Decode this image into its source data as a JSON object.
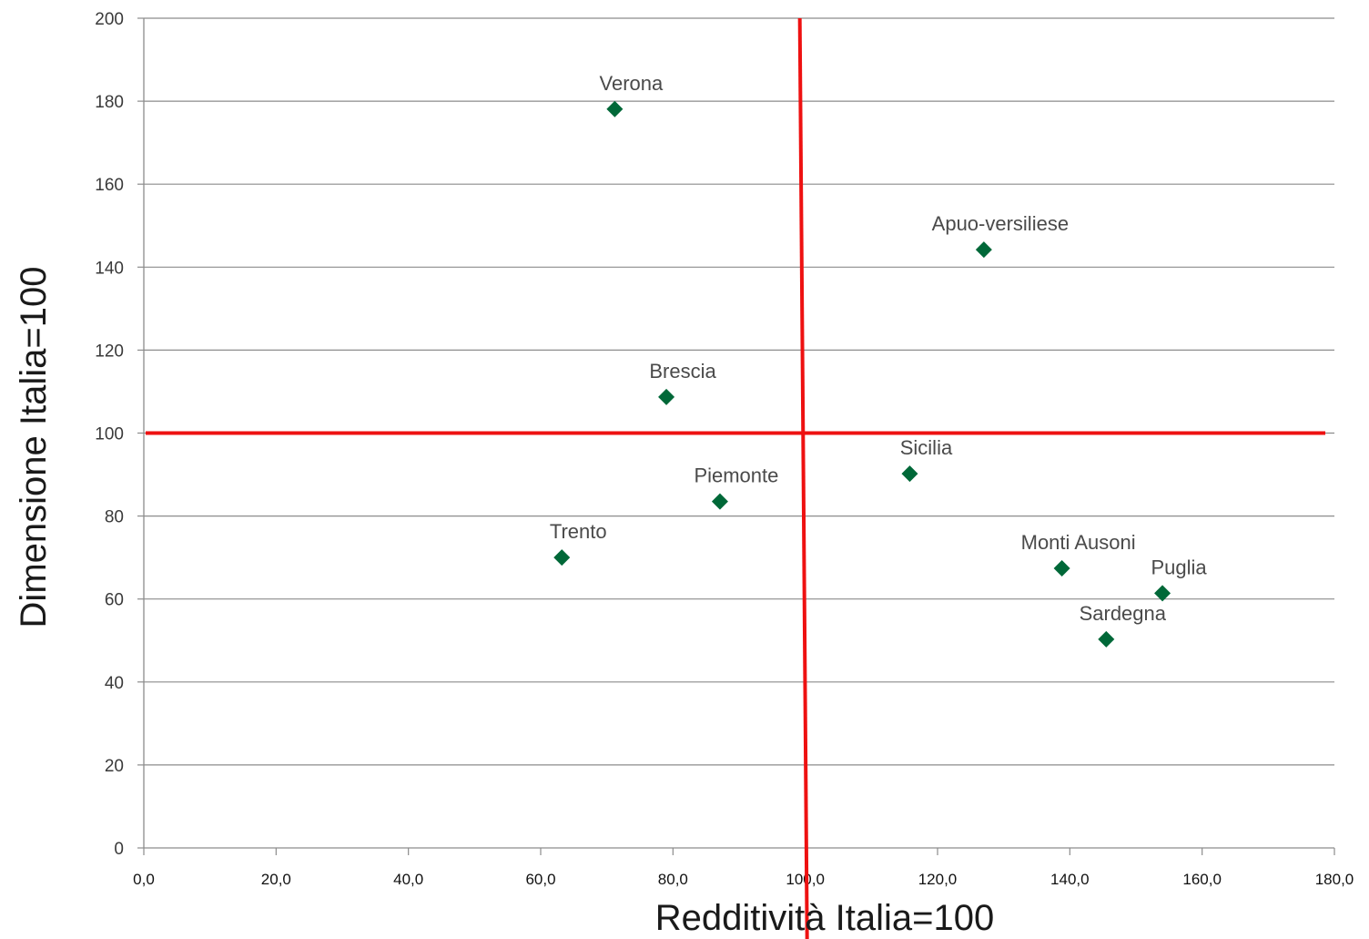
{
  "chart_data": {
    "type": "scatter",
    "xlabel": "Redditività Italia=100",
    "ylabel": "Dimensione Italia=100",
    "xlim": [
      0,
      180
    ],
    "ylim": [
      0,
      200
    ],
    "x_ticks": [
      "0,0",
      "20,0",
      "40,0",
      "60,0",
      "80,0",
      "100,0",
      "120,0",
      "140,0",
      "160,0",
      "180,0"
    ],
    "y_ticks": [
      "0",
      "20",
      "40",
      "60",
      "80",
      "100",
      "120",
      "140",
      "160",
      "180",
      "200"
    ],
    "grid": "horizontal",
    "marker": "diamond",
    "marker_color": "#006838",
    "reference_line_color": "#ee1111",
    "reference_lines": {
      "x": 100,
      "y": 100
    },
    "points": [
      {
        "label": "Verona",
        "x": 71.2,
        "y": 178.1
      },
      {
        "label": "Apuo-versiliese",
        "x": 127.0,
        "y": 144.2
      },
      {
        "label": "Brescia",
        "x": 79.0,
        "y": 108.7
      },
      {
        "label": "Sicilia",
        "x": 115.8,
        "y": 90.2
      },
      {
        "label": "Piemonte",
        "x": 87.1,
        "y": 83.5
      },
      {
        "label": "Trento",
        "x": 63.2,
        "y": 70.0
      },
      {
        "label": "Monti Ausoni",
        "x": 138.8,
        "y": 67.4
      },
      {
        "label": "Puglia",
        "x": 154.0,
        "y": 61.4
      },
      {
        "label": "Sardegna",
        "x": 145.5,
        "y": 50.3
      }
    ]
  }
}
